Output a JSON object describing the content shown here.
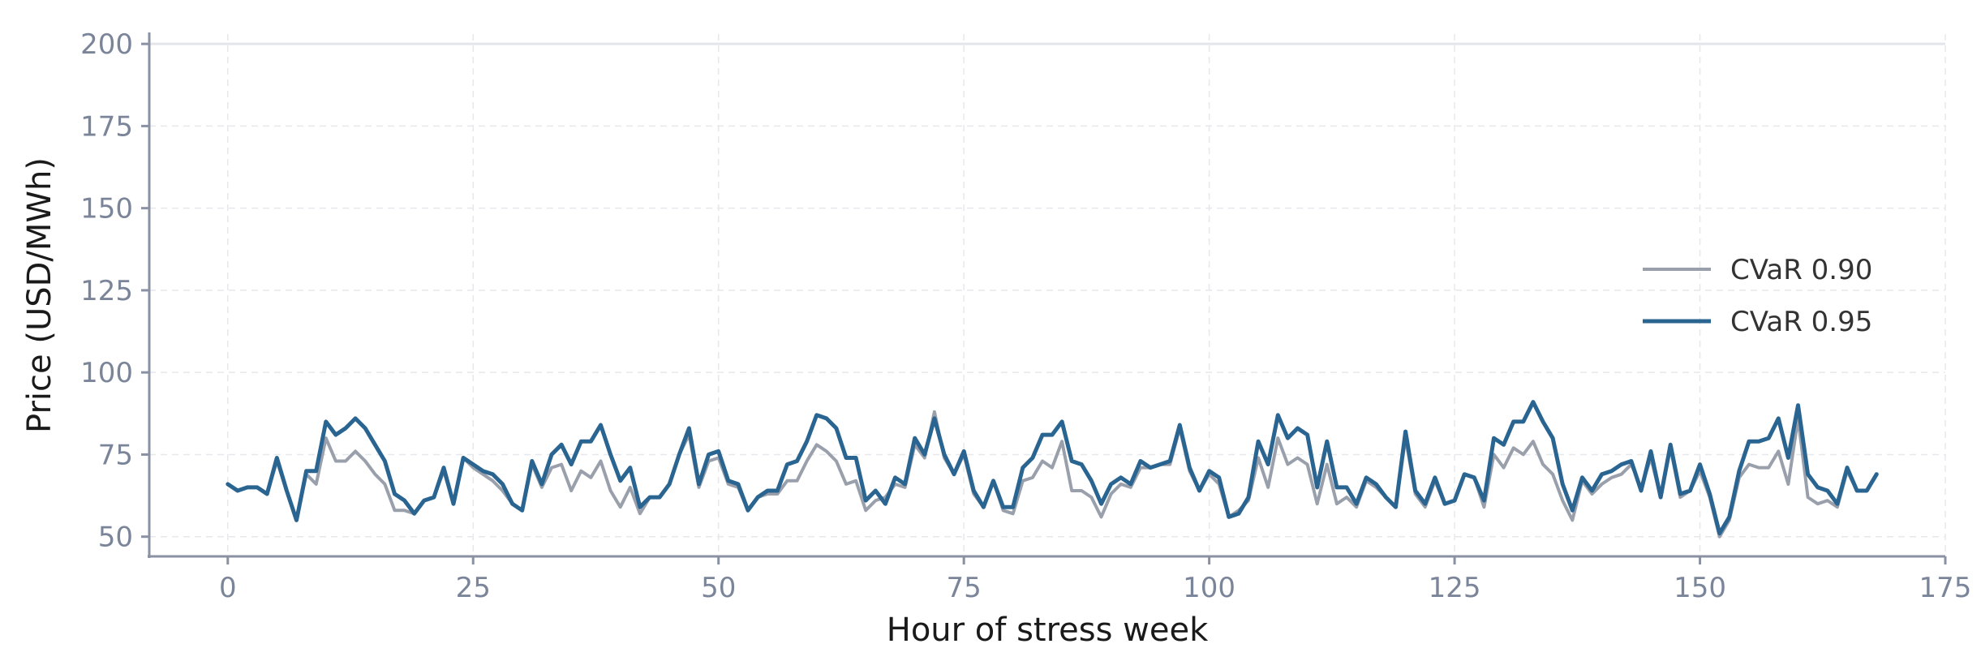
{
  "chart_data": {
    "type": "line",
    "title": "",
    "xlabel": "Hour of stress week",
    "ylabel": "Price (USD/MWh)",
    "xlim": [
      -8,
      175
    ],
    "ylim": [
      44,
      203
    ],
    "xticks": [
      0,
      25,
      50,
      75,
      100,
      125,
      150,
      175
    ],
    "yticks": [
      50,
      75,
      100,
      125,
      150,
      175,
      200
    ],
    "grid": true,
    "legend_position": "center-right",
    "series": [
      {
        "name": "CVaR 0.90",
        "color": "#9aa0ab",
        "values": [
          66,
          64,
          65,
          65,
          63,
          73,
          64,
          55,
          69,
          66,
          80,
          73,
          73,
          76,
          73,
          69,
          66,
          58,
          58,
          57,
          61,
          62,
          70,
          60,
          74,
          71,
          69,
          67,
          64,
          60,
          58,
          72,
          65,
          71,
          72,
          64,
          70,
          68,
          73,
          64,
          59,
          65,
          57,
          62,
          62,
          66,
          75,
          81,
          65,
          73,
          74,
          66,
          65,
          58,
          62,
          63,
          63,
          67,
          67,
          73,
          78,
          76,
          73,
          66,
          67,
          58,
          61,
          62,
          66,
          65,
          78,
          74,
          88,
          74,
          69,
          75,
          63,
          59,
          67,
          58,
          57,
          67,
          68,
          73,
          71,
          79,
          64,
          64,
          62,
          56,
          63,
          66,
          65,
          71,
          71,
          72,
          72,
          83,
          70,
          64,
          69,
          66,
          56,
          58,
          61,
          74,
          65,
          80,
          72,
          74,
          72,
          60,
          72,
          60,
          62,
          59,
          67,
          65,
          62,
          59,
          80,
          63,
          59,
          67,
          60,
          61,
          69,
          68,
          59,
          75,
          71,
          77,
          75,
          79,
          72,
          69,
          61,
          55,
          67,
          63,
          66,
          68,
          69,
          72,
          65,
          74,
          62,
          77,
          62,
          64,
          70,
          62,
          50,
          55,
          68,
          72,
          71,
          71,
          76,
          66,
          86,
          62,
          60,
          61,
          59,
          70,
          64,
          64,
          69
        ]
      },
      {
        "name": "CVaR 0.95",
        "color": "#2a6592",
        "values": [
          66,
          64,
          65,
          65,
          63,
          74,
          64,
          55,
          70,
          70,
          85,
          81,
          83,
          86,
          83,
          78,
          73,
          63,
          61,
          57,
          61,
          62,
          71,
          60,
          74,
          72,
          70,
          69,
          66,
          60,
          58,
          73,
          66,
          75,
          78,
          72,
          79,
          79,
          84,
          75,
          67,
          71,
          59,
          62,
          62,
          66,
          75,
          83,
          66,
          75,
          76,
          67,
          66,
          58,
          62,
          64,
          64,
          72,
          73,
          79,
          87,
          86,
          83,
          74,
          74,
          61,
          64,
          60,
          68,
          66,
          80,
          75,
          86,
          75,
          69,
          76,
          64,
          59,
          67,
          59,
          59,
          71,
          74,
          81,
          81,
          85,
          73,
          72,
          67,
          60,
          66,
          68,
          66,
          73,
          71,
          72,
          73,
          84,
          71,
          64,
          70,
          68,
          56,
          57,
          62,
          79,
          72,
          87,
          80,
          83,
          81,
          65,
          79,
          65,
          65,
          60,
          68,
          66,
          62,
          59,
          82,
          64,
          60,
          68,
          60,
          61,
          69,
          68,
          61,
          80,
          78,
          85,
          85,
          91,
          85,
          80,
          66,
          58,
          68,
          64,
          69,
          70,
          72,
          73,
          64,
          76,
          62,
          78,
          63,
          64,
          72,
          63,
          51,
          56,
          70,
          79,
          79,
          80,
          86,
          74,
          90,
          69,
          65,
          64,
          60,
          71,
          64,
          64,
          69
        ]
      }
    ]
  }
}
